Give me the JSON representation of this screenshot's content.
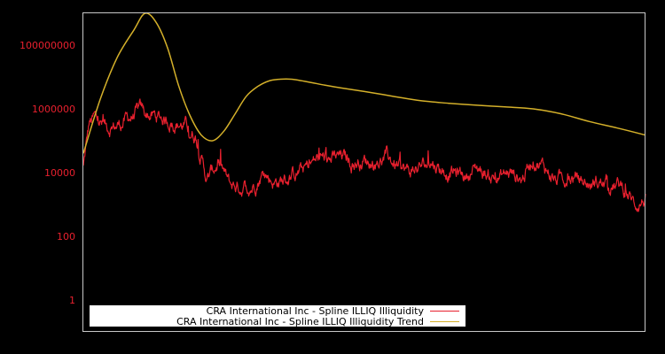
{
  "chart_data": {
    "type": "line",
    "title": "",
    "xlabel": "",
    "ylabel": "",
    "yscale": "log",
    "ylim": [
      0.1,
      1000000000
    ],
    "grid": false,
    "legend_position": "lower center",
    "y_ticks": [
      {
        "value": 1,
        "label": "1"
      },
      {
        "value": 100,
        "label": "100"
      },
      {
        "value": 10000,
        "label": "10000"
      },
      {
        "value": 1000000,
        "label": "1000000"
      },
      {
        "value": 100000000,
        "label": "100000000"
      }
    ],
    "x_ticks": [],
    "x_range": [
      0,
      1
    ],
    "series": [
      {
        "name": "CRA International Inc - Spline ILLIQ Illiquidity",
        "color": "#e8202e",
        "x": [
          0.0,
          0.01,
          0.02,
          0.04,
          0.06,
          0.08,
          0.1,
          0.12,
          0.14,
          0.16,
          0.18,
          0.2,
          0.22,
          0.24,
          0.26,
          0.28,
          0.3,
          0.32,
          0.34,
          0.36,
          0.38,
          0.4,
          0.42,
          0.44,
          0.46,
          0.48,
          0.5,
          0.52,
          0.54,
          0.56,
          0.58,
          0.6,
          0.62,
          0.64,
          0.66,
          0.68,
          0.7,
          0.72,
          0.74,
          0.76,
          0.78,
          0.8,
          0.82,
          0.84,
          0.86,
          0.88,
          0.9,
          0.92,
          0.94,
          0.96,
          0.98,
          1.0
        ],
        "values": [
          15000,
          300000,
          500000,
          250000,
          300000,
          500000,
          800000,
          600000,
          500000,
          400000,
          300000,
          150000,
          6000,
          20000,
          4000,
          3500,
          4000,
          10000,
          5000,
          6000,
          10000,
          15000,
          30000,
          25000,
          30000,
          20000,
          25000,
          20000,
          30000,
          15000,
          10000,
          15000,
          20000,
          12000,
          10000,
          8000,
          15000,
          8000,
          7000,
          10000,
          6000,
          30000,
          15000,
          6000,
          7000,
          6000,
          4000,
          5000,
          4000,
          3500,
          1000,
          1500
        ]
      },
      {
        "name": "CRA International Inc - Spline ILLIQ Illiquidity Trend",
        "color": "#d4b02a",
        "x": [
          0.0,
          0.03,
          0.06,
          0.09,
          0.11,
          0.13,
          0.15,
          0.17,
          0.19,
          0.21,
          0.23,
          0.25,
          0.27,
          0.29,
          0.31,
          0.33,
          0.35,
          0.37,
          0.4,
          0.43,
          0.46,
          0.5,
          0.55,
          0.6,
          0.65,
          0.7,
          0.75,
          0.8,
          0.85,
          0.9,
          0.95,
          1.0
        ],
        "values": [
          40000,
          2000000,
          40000000,
          300000000,
          1000000000,
          500000000,
          80000000,
          5000000,
          600000,
          150000,
          100000,
          200000,
          700000,
          2500000,
          5000000,
          7500000,
          8500000,
          8500000,
          7000000,
          5500000,
          4500000,
          3500000,
          2500000,
          1800000,
          1500000,
          1300000,
          1150000,
          1000000,
          700000,
          400000,
          250000,
          150000
        ]
      }
    ]
  },
  "legend": {
    "items": [
      {
        "label": "CRA International Inc - Spline ILLIQ Illiquidity",
        "color": "#e8202e"
      },
      {
        "label": "CRA International Inc - Spline ILLIQ Illiquidity Trend",
        "color": "#d4b02a"
      }
    ]
  },
  "colors": {
    "background": "#000000",
    "frame": "#c8c8c8",
    "tick_label": "#e8202e",
    "legend_bg": "#ffffff"
  }
}
